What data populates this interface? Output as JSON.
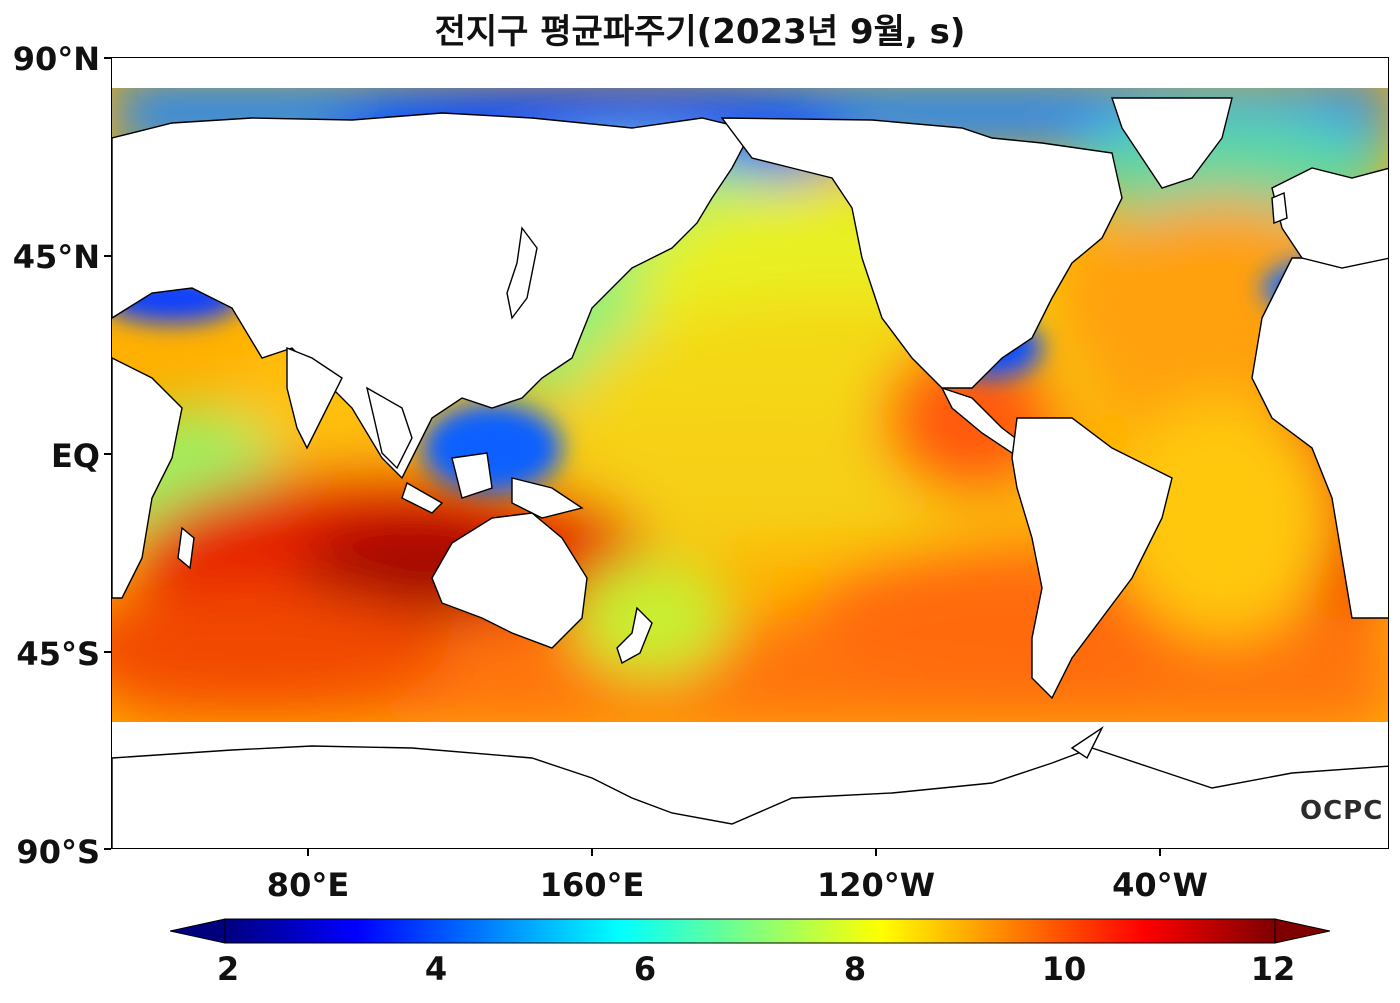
{
  "title": "전지구 평균파주기(2023년 9월, s)",
  "latitude_labels": [
    "90°N",
    "45°N",
    "EQ",
    "45°S",
    "90°S"
  ],
  "longitude_labels": [
    "80°E",
    "160°E",
    "120°W",
    "40°W"
  ],
  "colorbar": {
    "ticks": [
      "2",
      "4",
      "6",
      "8",
      "10",
      "12"
    ],
    "min": 2,
    "max": 12,
    "colormap": "jet",
    "colors": [
      "#00007f",
      "#0000ff",
      "#007fff",
      "#00ffff",
      "#7fff7f",
      "#ffff00",
      "#ff7f00",
      "#ff0000",
      "#7f0000"
    ]
  },
  "logo_text": "OCPC",
  "colors": {
    "land": "#ffffff",
    "coast": "#000000",
    "pacific_central": "#f5d020",
    "southern_ocean": "#ff7a10",
    "indian_south": "#e02000",
    "arctic": "#1a7aff"
  }
}
